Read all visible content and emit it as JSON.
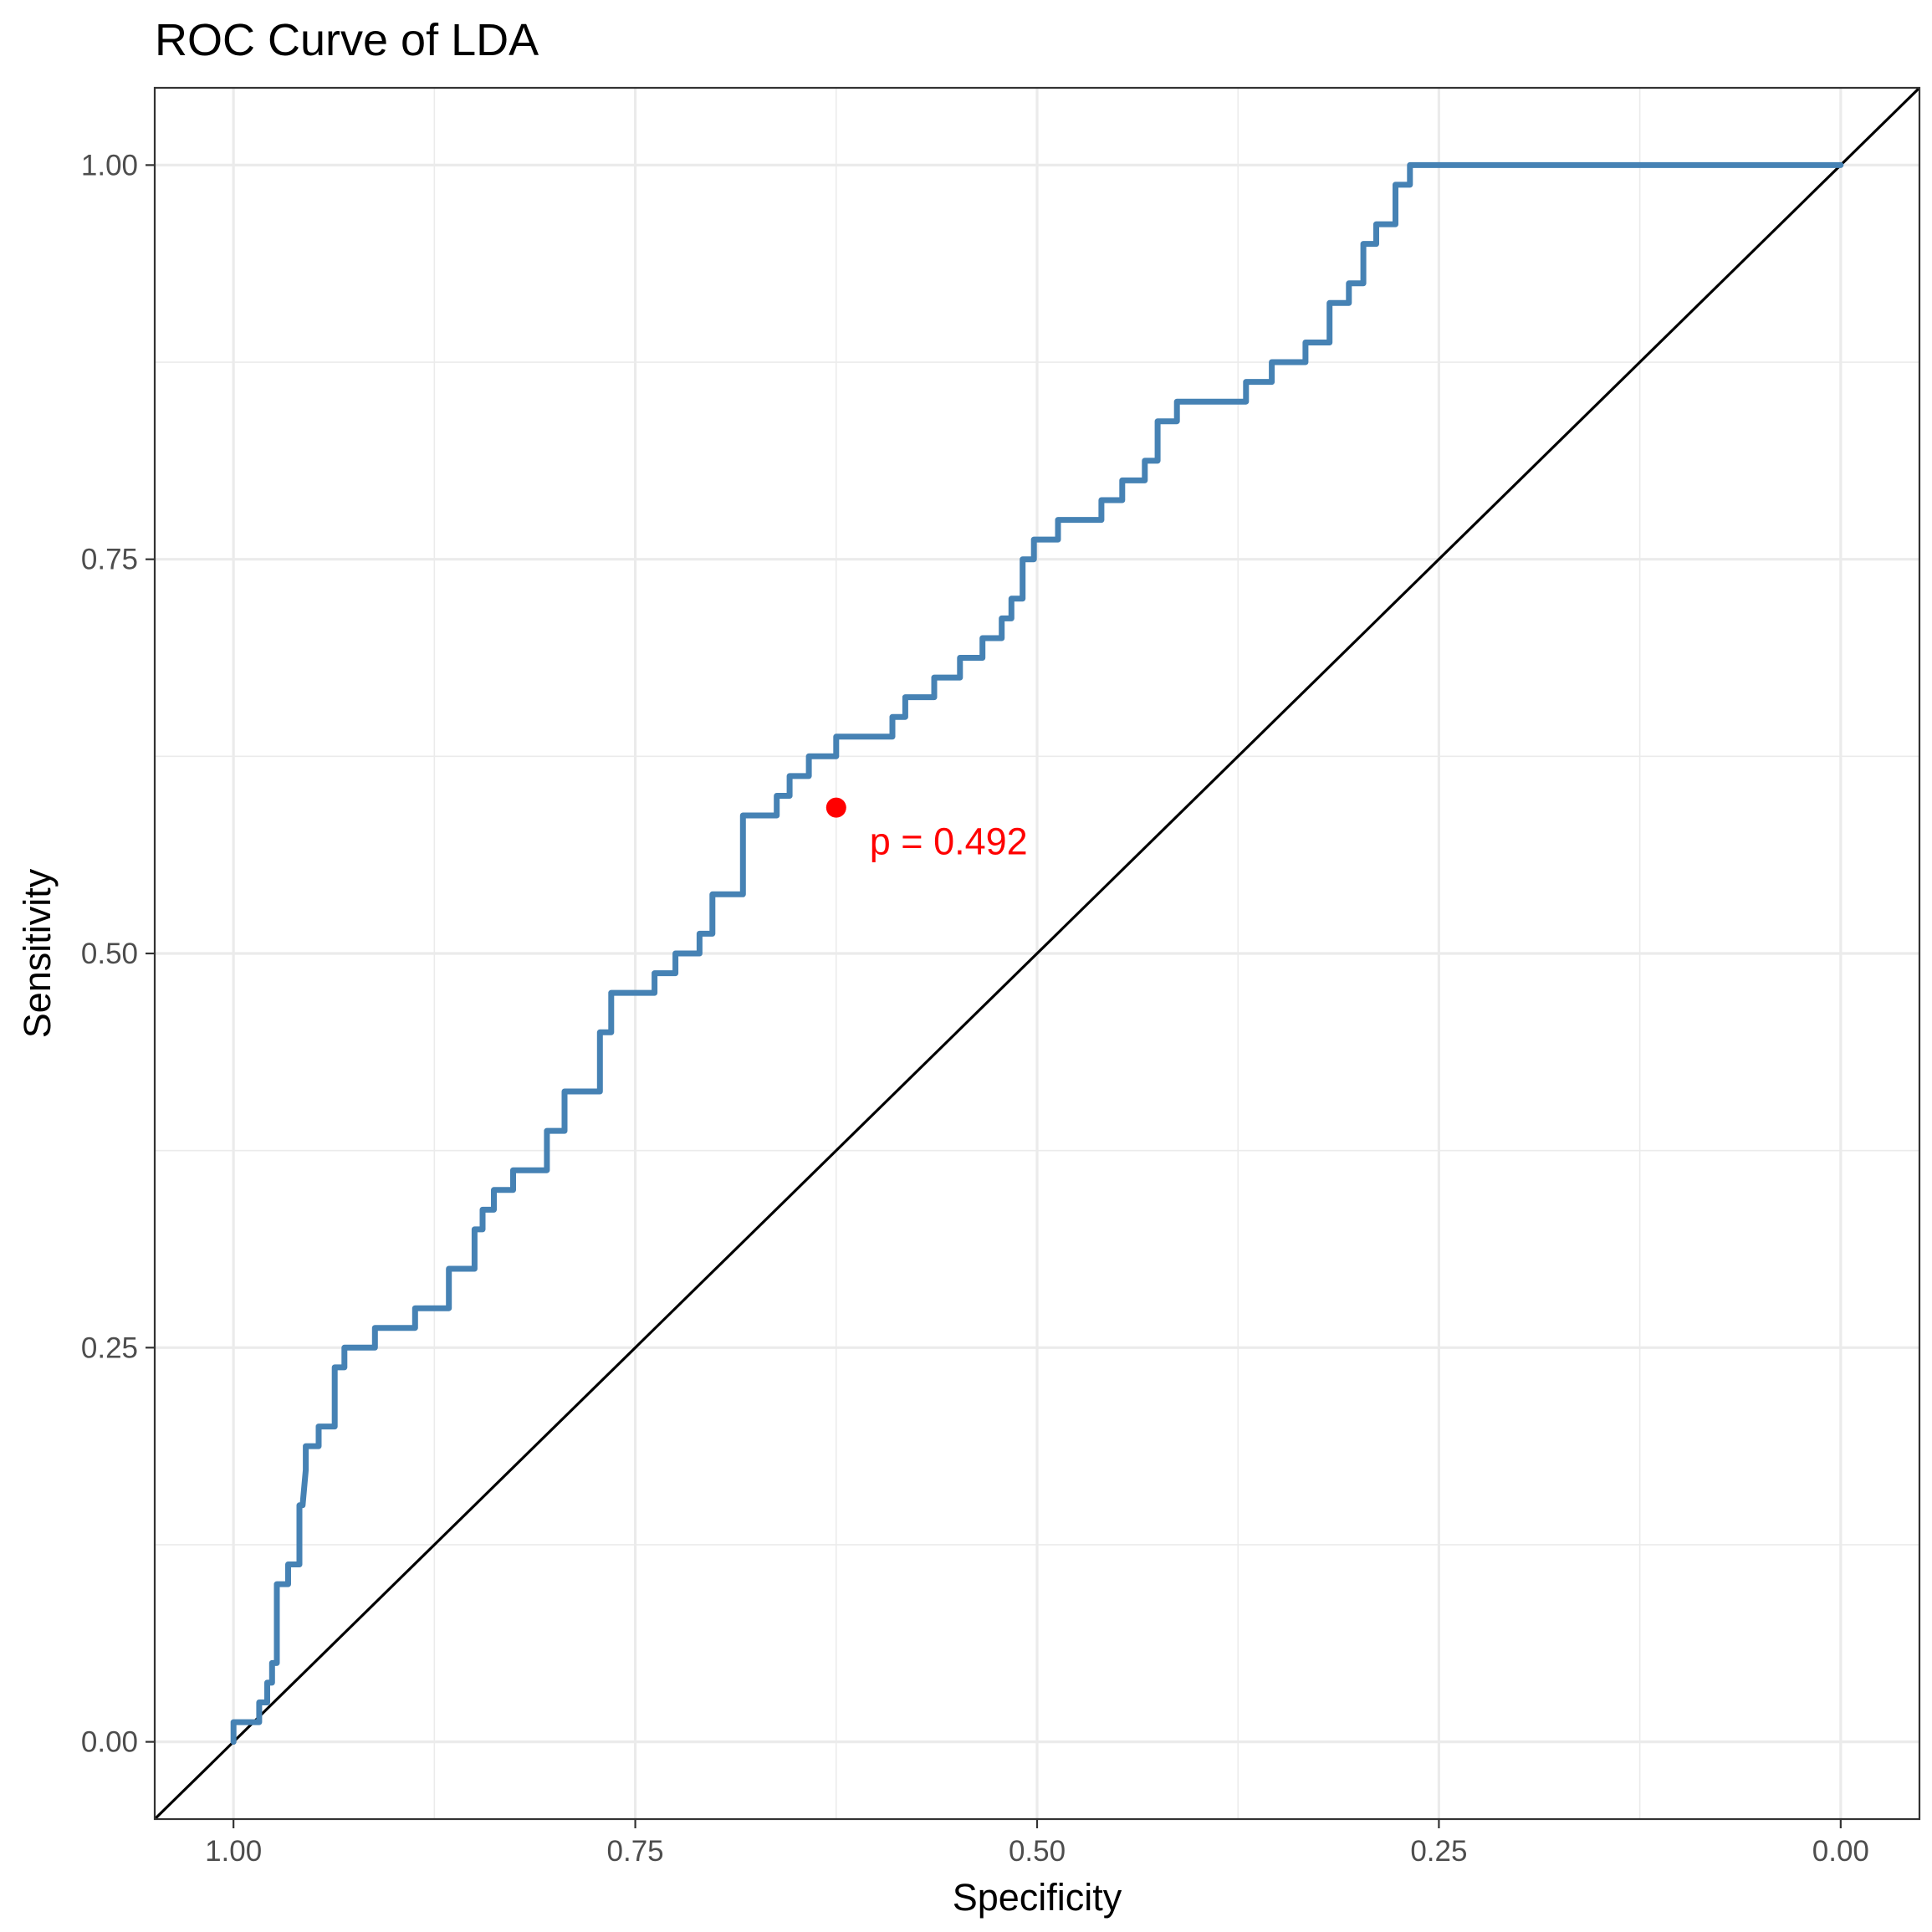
{
  "chart_data": {
    "type": "line",
    "title": "ROC Curve of LDA",
    "xlabel": "Specificity",
    "ylabel": "Sensitivity",
    "x_reversed": true,
    "xlim": [
      1.049,
      -0.049
    ],
    "ylim": [
      -0.049,
      1.049
    ],
    "xticks": [
      1.0,
      0.75,
      0.5,
      0.25,
      0.0
    ],
    "xtick_labels": [
      "1.00",
      "0.75",
      "0.50",
      "0.25",
      "0.00"
    ],
    "yticks": [
      0.0,
      0.25,
      0.5,
      0.75,
      1.0
    ],
    "ytick_labels": [
      "0.00",
      "0.25",
      "0.50",
      "0.75",
      "1.00"
    ],
    "grid": true,
    "legend": "none",
    "colors": {
      "curve": "#4682B4",
      "diagonal": "#000000",
      "annotation": "#FF0000",
      "grid": "#EBEBEB",
      "tick_label": "#4D4D4D"
    },
    "series": [
      {
        "role": "roc-curve",
        "specificity": [
          1.0,
          1.0,
          0.984,
          0.984,
          0.979,
          0.979,
          0.976,
          0.976,
          0.973,
          0.973,
          0.966,
          0.966,
          0.959,
          0.959,
          0.957,
          0.955,
          0.955,
          0.947,
          0.947,
          0.937,
          0.937,
          0.931,
          0.931,
          0.912,
          0.912,
          0.887,
          0.887,
          0.866,
          0.866,
          0.85,
          0.85,
          0.845,
          0.845,
          0.838,
          0.838,
          0.826,
          0.826,
          0.805,
          0.805,
          0.794,
          0.794,
          0.772,
          0.772,
          0.765,
          0.765,
          0.738,
          0.738,
          0.725,
          0.725,
          0.71,
          0.71,
          0.702,
          0.702,
          0.683,
          0.683,
          0.662,
          0.662,
          0.654,
          0.654,
          0.642,
          0.642,
          0.625,
          0.625,
          0.625,
          0.59,
          0.59,
          0.582,
          0.582,
          0.564,
          0.564,
          0.548,
          0.548,
          0.534,
          0.534,
          0.522,
          0.522,
          0.516,
          0.516,
          0.509,
          0.509,
          0.502,
          0.502,
          0.487,
          0.487,
          0.46,
          0.46,
          0.447,
          0.447,
          0.433,
          0.433,
          0.425,
          0.425,
          0.413,
          0.413,
          0.37,
          0.37,
          0.354,
          0.354,
          0.333,
          0.333,
          0.318,
          0.318,
          0.306,
          0.306,
          0.297,
          0.297,
          0.289,
          0.289,
          0.277,
          0.277,
          0.268,
          0.268,
          0.253,
          0.253,
          0.24,
          0.24,
          0.211,
          0.211,
          0.187,
          0.187,
          0.142,
          0.142,
          0.129,
          0.129,
          0.105,
          0.105,
          0.094,
          0.094,
          0.083,
          0.083,
          0.053,
          0.053,
          0.045,
          0.045,
          0.0
        ],
        "sensitivity": [
          0.0,
          0.0125,
          0.0125,
          0.025,
          0.025,
          0.0375,
          0.0375,
          0.05,
          0.05,
          0.1,
          0.1,
          0.1125,
          0.1125,
          0.15,
          0.15,
          0.1725,
          0.1875,
          0.1875,
          0.2,
          0.2,
          0.2375,
          0.2375,
          0.25,
          0.25,
          0.2625,
          0.2625,
          0.275,
          0.275,
          0.3,
          0.3,
          0.325,
          0.325,
          0.3375,
          0.3375,
          0.35,
          0.35,
          0.3625,
          0.3625,
          0.3875,
          0.3875,
          0.4125,
          0.4125,
          0.45,
          0.45,
          0.475,
          0.475,
          0.4875,
          0.4875,
          0.5,
          0.5,
          0.5125,
          0.5125,
          0.5375,
          0.5375,
          0.5875,
          0.5875,
          0.6,
          0.6,
          0.6125,
          0.6125,
          0.625,
          0.625,
          0.6375,
          0.6375,
          0.6375,
          0.65,
          0.65,
          0.6625,
          0.6625,
          0.675,
          0.675,
          0.6875,
          0.6875,
          0.7,
          0.7,
          0.7125,
          0.7125,
          0.725,
          0.725,
          0.75,
          0.75,
          0.7625,
          0.7625,
          0.775,
          0.775,
          0.7875,
          0.7875,
          0.8,
          0.8,
          0.8125,
          0.8125,
          0.8375,
          0.8375,
          0.85,
          0.85,
          0.8625,
          0.8625,
          0.875,
          0.875,
          0.8875,
          0.8875,
          0.9125,
          0.9125,
          0.925,
          0.925,
          0.95,
          0.95,
          0.9625,
          0.9625,
          0.9875,
          0.9875,
          1.0,
          1.0,
          1.0,
          1.0,
          1.0,
          1.0,
          1.0,
          1.0,
          1.0,
          1.0,
          1.0,
          1.0,
          1.0,
          1.0,
          1.0,
          1.0,
          1.0,
          1.0,
          1.0,
          1.0,
          1.0,
          1.0,
          1.0,
          1.0
        ]
      },
      {
        "role": "reference-diagonal",
        "specificity": [
          1.049,
          -0.049
        ],
        "sensitivity": [
          -0.049,
          1.049
        ]
      }
    ],
    "annotation": {
      "text": "p = 0.492",
      "point": {
        "specificity": 0.625,
        "sensitivity": 0.5925
      }
    }
  }
}
